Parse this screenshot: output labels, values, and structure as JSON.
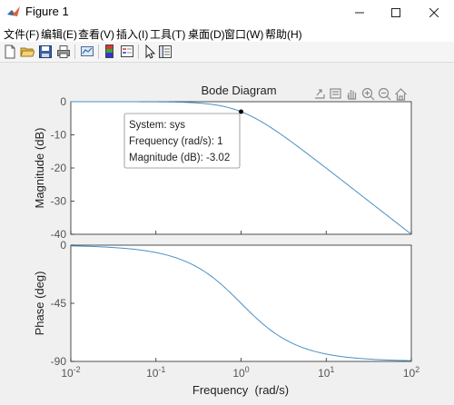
{
  "window": {
    "title": "Figure 1"
  },
  "menu": [
    "文件(F)",
    "编辑(E)",
    "查看(V)",
    "插入(I)",
    "工具(T)",
    "桌面(D)",
    "窗口(W)",
    "帮助(H)"
  ],
  "toolbar_icons": [
    "new-figure-icon",
    "open-file-icon",
    "save-icon",
    "print-icon",
    "link-plot-icon",
    "colorbar-icon",
    "legend-icon",
    "pointer-icon",
    "property-inspector-icon"
  ],
  "axes_toolbar_icons": [
    "export-icon",
    "data-tips-icon",
    "pan-hand-icon",
    "zoom-in-icon",
    "zoom-out-icon",
    "home-icon"
  ],
  "colors": {
    "line": "#4a90c4",
    "axes_bg": "#ffffff",
    "grid": "#dfdfdf",
    "figure_bg": "#f0f0f0"
  },
  "chart_data": {
    "type": "line",
    "title": "Bode Diagram",
    "xlabel": "Frequency  (rad/s)",
    "xscale": "log",
    "xlim": [
      0.01,
      100
    ],
    "xticks": [
      "10^-2",
      "10^-1",
      "10^0",
      "10^1",
      "10^2"
    ],
    "grid": false,
    "magnitude": {
      "ylabel": "Magnitude (dB)",
      "ylim": [
        -40,
        0
      ],
      "yticks": [
        "0",
        "-10",
        "-20",
        "-30",
        "-40"
      ],
      "x": [
        0.01,
        0.1,
        0.3,
        0.5,
        1,
        2,
        5,
        10,
        20,
        50,
        100
      ],
      "y": [
        0,
        -0.04,
        -0.37,
        -0.97,
        -3.02,
        -6.99,
        -14.15,
        -20.04,
        -26.02,
        -33.98,
        -40.0
      ]
    },
    "phase": {
      "ylabel": "Phase (deg)",
      "ylim": [
        -90,
        0
      ],
      "yticks": [
        "0",
        "-45",
        "-90"
      ],
      "x": [
        0.01,
        0.1,
        0.3,
        0.5,
        1,
        2,
        5,
        10,
        20,
        50,
        100
      ],
      "y": [
        -0.57,
        -5.71,
        -16.7,
        -26.57,
        -45,
        -63.43,
        -78.69,
        -84.29,
        -87.14,
        -88.85,
        -89.43
      ]
    },
    "datatip": {
      "x": 1,
      "y": -3.02,
      "lines": [
        "System: sys",
        "Frequency (rad/s): 1",
        "Magnitude (dB): -3.02"
      ]
    }
  }
}
